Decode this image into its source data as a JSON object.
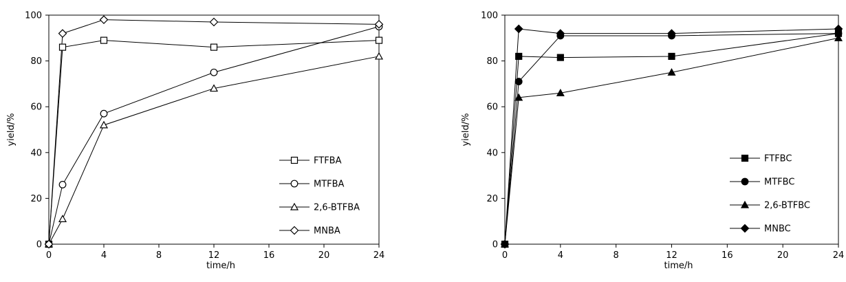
{
  "chart_data": [
    {
      "type": "line",
      "title": "",
      "xlabel": "time/h",
      "ylabel": "yield/%",
      "xlim": [
        0,
        24
      ],
      "ylim": [
        0,
        100
      ],
      "xticks": [
        0,
        4,
        8,
        12,
        16,
        20,
        24
      ],
      "yticks": [
        0,
        20,
        40,
        60,
        80,
        100
      ],
      "grid": false,
      "legend_position": "bottom-right",
      "series": [
        {
          "name": "FTFBA",
          "marker": "square-open",
          "x": [
            0,
            1,
            4,
            12,
            24
          ],
          "y": [
            0,
            86,
            89,
            86,
            89
          ]
        },
        {
          "name": "MTFBA",
          "marker": "circle-open",
          "x": [
            0,
            1,
            4,
            12,
            24
          ],
          "y": [
            0,
            26,
            57,
            75,
            95
          ]
        },
        {
          "name": "2,6-BTFBA",
          "marker": "triangle-open",
          "x": [
            0,
            1,
            4,
            12,
            24
          ],
          "y": [
            0,
            11,
            52,
            68,
            82
          ]
        },
        {
          "name": "MNBA",
          "marker": "diamond-open",
          "x": [
            0,
            1,
            4,
            12,
            24
          ],
          "y": [
            0,
            92,
            98,
            97,
            96
          ]
        }
      ]
    },
    {
      "type": "line",
      "title": "",
      "xlabel": "time/h",
      "ylabel": "yield/%",
      "xlim": [
        0,
        24
      ],
      "ylim": [
        0,
        100
      ],
      "xticks": [
        0,
        4,
        8,
        12,
        16,
        20,
        24
      ],
      "yticks": [
        0,
        20,
        40,
        60,
        80,
        100
      ],
      "grid": false,
      "legend_position": "bottom-right",
      "series": [
        {
          "name": "FTFBC",
          "marker": "square-filled",
          "x": [
            0,
            1,
            4,
            12,
            24
          ],
          "y": [
            0,
            82,
            81.5,
            82,
            92
          ]
        },
        {
          "name": "MTFBC",
          "marker": "circle-filled",
          "x": [
            0,
            1,
            4,
            12,
            24
          ],
          "y": [
            0,
            71,
            91,
            91,
            92
          ]
        },
        {
          "name": "2,6-BTFBC",
          "marker": "triangle-filled",
          "x": [
            0,
            1,
            4,
            12,
            24
          ],
          "y": [
            0,
            64,
            66,
            75,
            90
          ]
        },
        {
          "name": "MNBC",
          "marker": "diamond-filled",
          "x": [
            0,
            1,
            4,
            12,
            24
          ],
          "y": [
            0,
            94,
            92,
            92,
            94
          ]
        }
      ]
    }
  ]
}
